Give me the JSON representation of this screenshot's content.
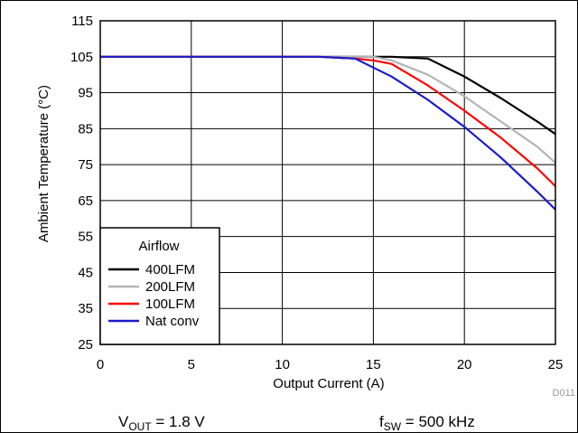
{
  "chart_data": {
    "type": "line",
    "title": "",
    "xlabel": "Output Current (A)",
    "ylabel": "Ambient Temperature (°C)",
    "xlim": [
      0,
      25
    ],
    "ylim": [
      25,
      115
    ],
    "xticks": [
      0,
      5,
      10,
      15,
      20,
      25
    ],
    "yticks": [
      25,
      35,
      45,
      55,
      65,
      75,
      85,
      95,
      105,
      115
    ],
    "grid": true,
    "legend": {
      "title": "Airflow",
      "placement": "bottom-left"
    },
    "series": [
      {
        "name": "400LFM",
        "color": "#000000",
        "x": [
          0,
          12,
          14,
          16,
          18,
          20,
          22,
          24,
          25
        ],
        "y": [
          105,
          105,
          105,
          105,
          104.5,
          99.5,
          93.5,
          87,
          83.5
        ]
      },
      {
        "name": "200LFM",
        "color": "#b4b4b4",
        "x": [
          0,
          12,
          14,
          15,
          16,
          18,
          20,
          22,
          24,
          25
        ],
        "y": [
          105,
          105,
          105,
          105,
          104,
          100,
          94,
          87,
          80,
          75.5
        ]
      },
      {
        "name": "100LFM",
        "color": "#ff0000",
        "x": [
          0,
          12,
          14,
          15,
          16,
          18,
          20,
          22,
          24,
          25
        ],
        "y": [
          105,
          105,
          104.5,
          104,
          103,
          97,
          90,
          82.5,
          74,
          69
        ]
      },
      {
        "name": "Nat conv",
        "color": "#1a1acc",
        "x": [
          0,
          12,
          14,
          16,
          18,
          20,
          22,
          24,
          25
        ],
        "y": [
          105,
          105,
          104.5,
          99.5,
          93,
          85.5,
          77,
          67.5,
          62.5
        ]
      }
    ],
    "figure_id": "D011"
  },
  "footer": {
    "vout_label": "V",
    "vout_sub": "OUT",
    "vout_value": " = 1.8 V",
    "fsw_label": "f",
    "fsw_sub": "SW",
    "fsw_value": " = 500 kHz"
  }
}
